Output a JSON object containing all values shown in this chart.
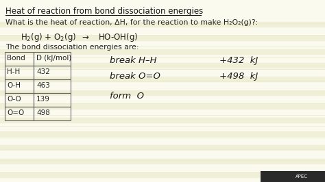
{
  "background_color": "#fafaee",
  "line_stripe_color": "#f0f0d8",
  "title": "Heat of reaction from bond dissociation energies",
  "subtitle": "What is the heat of reaction, ΔH, for the reaction to make H₂O₂(g)?:",
  "bond_label": "The bond dissociation energies are:",
  "table_headers": [
    "Bond",
    "D (kJ/mol)"
  ],
  "table_rows": [
    [
      "H-H",
      "432"
    ],
    [
      "O-H",
      "463"
    ],
    [
      "O-O",
      "139"
    ],
    [
      "O=O",
      "498"
    ]
  ],
  "hw_break1_left": "break H–H",
  "hw_break1_right": "+432  kJ",
  "hw_break2_left": "break O=O",
  "hw_break2_right": "+498  kJ",
  "hw_form": "form  O",
  "title_color": "#111111",
  "text_color": "#222222",
  "hw_color": "#1a1a1a",
  "table_border_color": "#666666"
}
